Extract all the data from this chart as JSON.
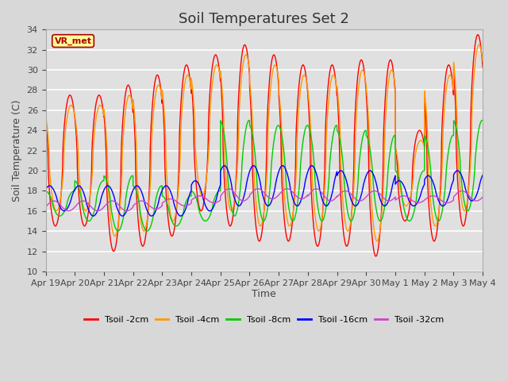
{
  "title": "Soil Temperatures Set 2",
  "xlabel": "Time",
  "ylabel": "Soil Temperature (C)",
  "ylim": [
    10,
    34
  ],
  "yticks": [
    10,
    12,
    14,
    16,
    18,
    20,
    22,
    24,
    26,
    28,
    30,
    32,
    34
  ],
  "fig_bg_color": "#d8d8d8",
  "plot_bg_color": "#e0e0e0",
  "grid_color": "#ffffff",
  "annotation_text": "VR_met",
  "annotation_bg": "#ffff99",
  "annotation_border": "#aa0000",
  "legend_labels": [
    "Tsoil -2cm",
    "Tsoil -4cm",
    "Tsoil -8cm",
    "Tsoil -16cm",
    "Tsoil -32cm"
  ],
  "colors": [
    "#ff0000",
    "#ff9900",
    "#00cc00",
    "#0000ff",
    "#cc44cc"
  ],
  "xtick_labels": [
    "Apr 19",
    "Apr 20",
    "Apr 21",
    "Apr 22",
    "Apr 23",
    "Apr 24",
    "Apr 25",
    "Apr 26",
    "Apr 27",
    "Apr 28",
    "Apr 29",
    "Apr 30",
    "May 1",
    "May 2",
    "May 3",
    "May 4"
  ],
  "title_fontsize": 13,
  "label_fontsize": 9,
  "tick_fontsize": 8
}
